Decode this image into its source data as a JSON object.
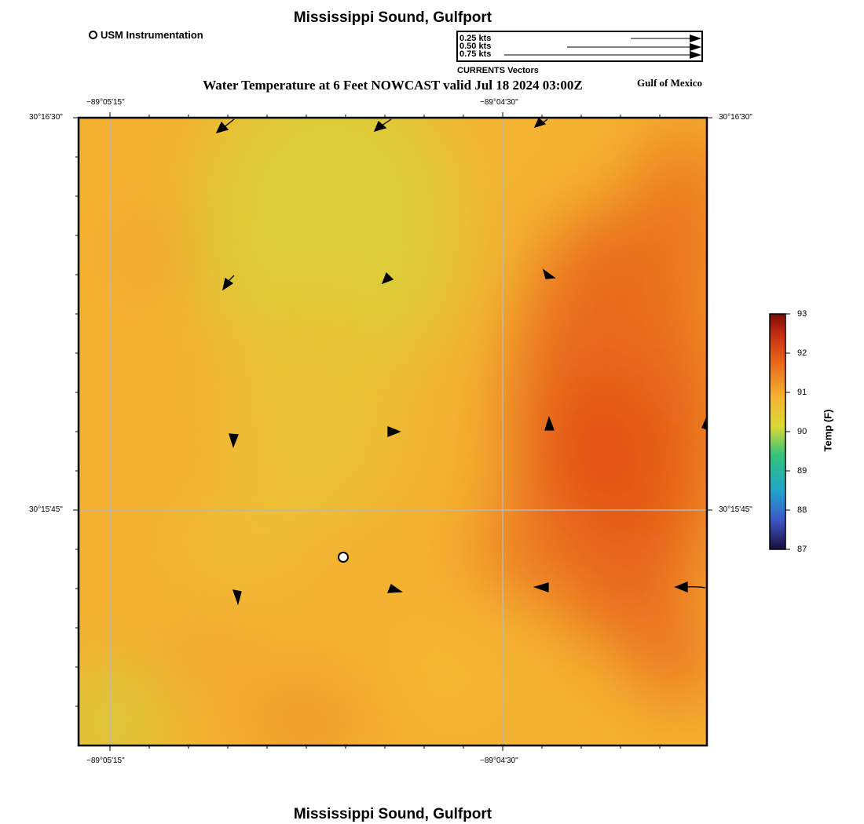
{
  "header": {
    "title": "Mississippi Sound, Gulfport",
    "subtitle": "Water Temperature at 6 Feet NOWCAST valid Jul 18 2024 03:00Z",
    "region_label": "Gulf of Mexico",
    "footer_title": "Mississippi Sound, Gulfport"
  },
  "legend": {
    "station_label": "USM Instrumentation",
    "vector_caption": "CURRENTS Vectors",
    "vector_scales": [
      {
        "label": "0.25 kts",
        "value": 0.25
      },
      {
        "label": "0.50 kts",
        "value": 0.5
      },
      {
        "label": "0.75 kts",
        "value": 0.75
      }
    ]
  },
  "axes": {
    "lon_ticks": [
      "−89°05'15\"",
      "−89°04'30\""
    ],
    "lat_ticks": [
      "30°16'30\"",
      "30°15'45\""
    ]
  },
  "colorbar": {
    "label": "Temp (F)",
    "ticks": [
      "93",
      "92",
      "91",
      "90",
      "89",
      "88",
      "87"
    ],
    "min": 87,
    "max": 93,
    "colors": [
      "#1a0d3a",
      "#3d57c8",
      "#1fa6cc",
      "#33c27a",
      "#d9d935",
      "#f5b22f",
      "#e8641a",
      "#c02a10",
      "#7a0c08"
    ]
  }
}
